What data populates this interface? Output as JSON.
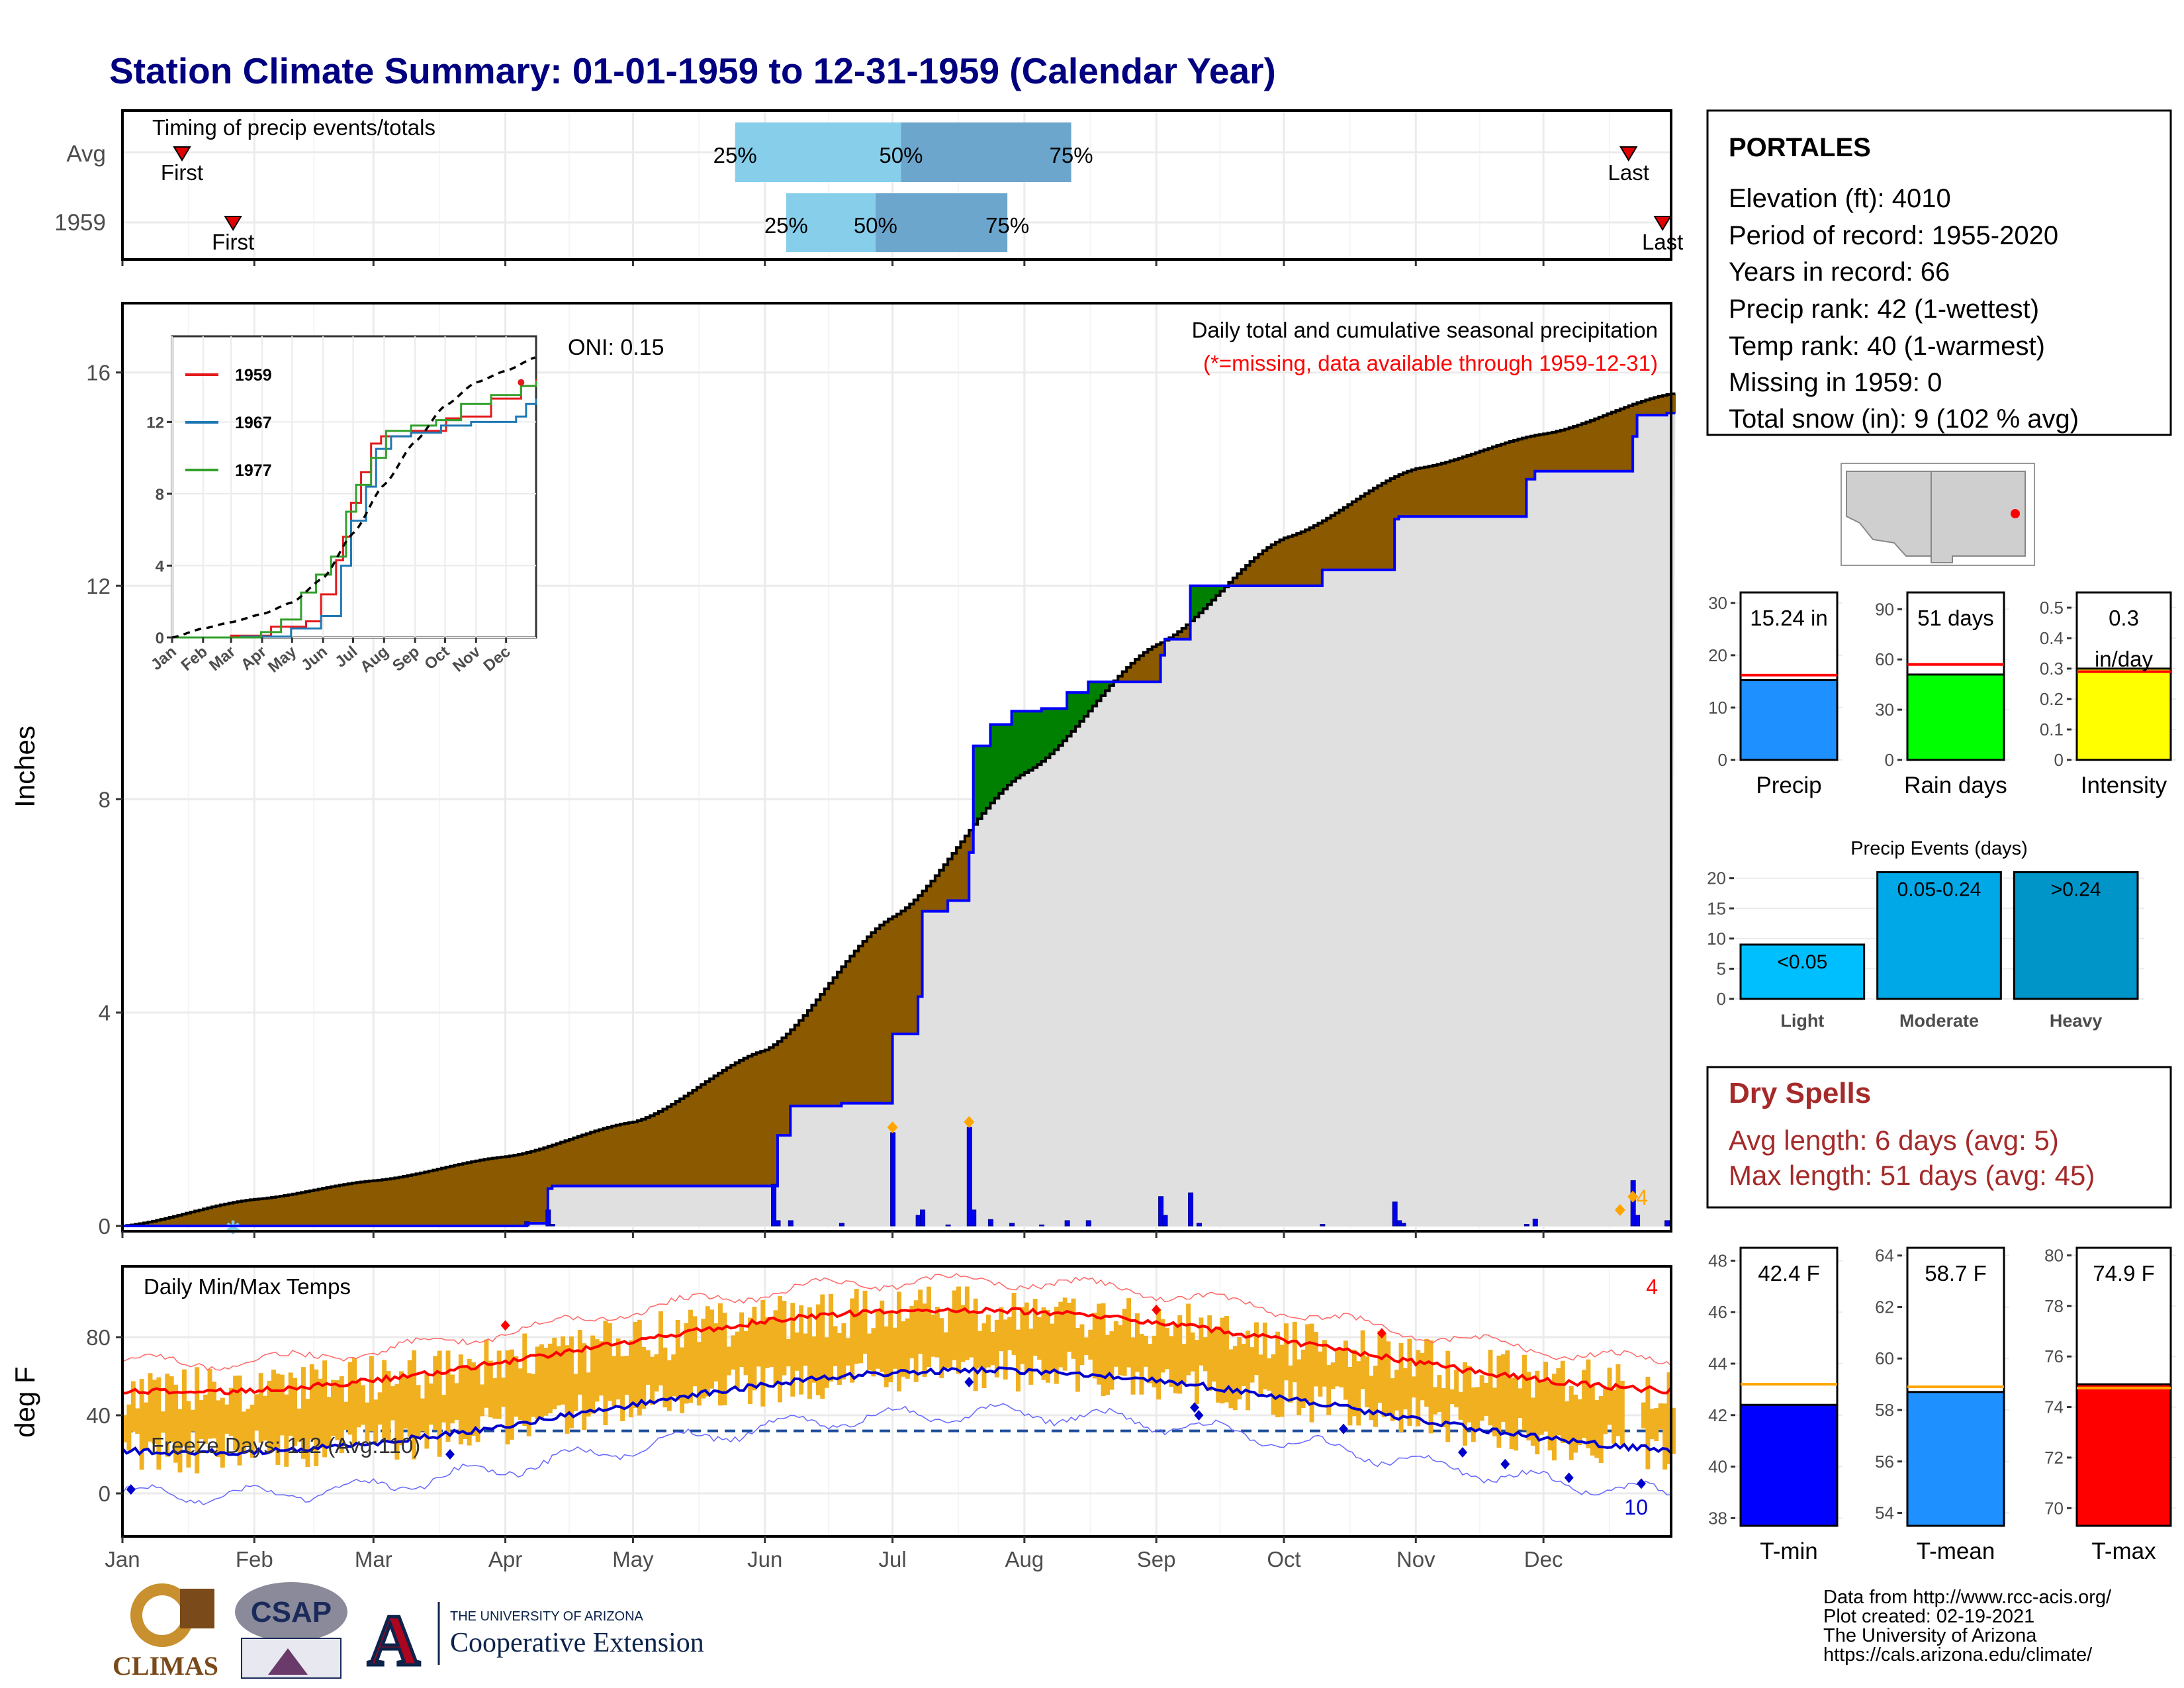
{
  "title": "Station Climate Summary: 01-01-1959 to 12-31-1959 (Calendar Year)",
  "months": [
    "Jan",
    "Feb",
    "Mar",
    "Apr",
    "May",
    "Jun",
    "Jul",
    "Aug",
    "Sep",
    "Oct",
    "Nov",
    "Dec"
  ],
  "timing": {
    "label": "Timing of precip events/totals",
    "rows": [
      {
        "name": "Avg",
        "first_doy": 15,
        "last_doy": 355,
        "p25_doy": 145,
        "p50_doy": 184,
        "p75_doy": 224,
        "first_label": "First",
        "last_label": "Last",
        "p25_label": "25%",
        "p50_label": "50%",
        "p75_label": "75%"
      },
      {
        "name": "1959",
        "first_doy": 27,
        "last_doy": 363,
        "p25_doy": 157,
        "p50_doy": 178,
        "p75_doy": 209,
        "first_label": "First",
        "last_label": "Last",
        "p25_label": "25%",
        "p50_label": "50%",
        "p75_label": "75%"
      }
    ]
  },
  "precip_panel": {
    "ylabel": "Inches",
    "yticks": [
      0,
      4,
      8,
      12,
      16
    ],
    "ymax": 17.2,
    "oni": "ONI: 0.15",
    "caption": "Daily total and cumulative seasonal precipitation",
    "missing_note": "(*=missing, data available through 1959-12-31)",
    "missing_count": "4",
    "colors": {
      "surplus": "#008000",
      "deficit": "#8b5a00",
      "year_line": "#0000ff",
      "avg_line": "#000000",
      "fill": "#e0e0e0"
    }
  },
  "inset": {
    "yticks": [
      0,
      4,
      8,
      12
    ],
    "months": [
      "Jan",
      "Feb",
      "Mar",
      "Apr",
      "May",
      "Jun",
      "Jul",
      "Aug",
      "Sep",
      "Oct",
      "Nov",
      "Dec"
    ],
    "series": [
      {
        "name": "1959",
        "color": "#e31a1c"
      },
      {
        "name": "1967",
        "color": "#1f78b4"
      },
      {
        "name": "1977",
        "color": "#33a02c"
      }
    ]
  },
  "temp_panel": {
    "ylabel": "deg F",
    "yticks": [
      0,
      40,
      80
    ],
    "label": "Daily Min/Max Temps",
    "freeze_label": "Freeze Days: 112 (Avg:110)",
    "missing_max": "4",
    "missing_min": "10",
    "colors": {
      "bars": "#f0b020",
      "max_line": "#ff0000",
      "min_line": "#0000cc",
      "freeze": "#1f4e9a"
    }
  },
  "station": {
    "name": "PORTALES",
    "lines": [
      "Elevation (ft): 4010",
      "Period of record: 1955-2020",
      "Years in record: 66",
      "Precip rank: 42 (1-wettest)",
      "Temp rank: 40 (1-warmest)",
      "Missing in 1959: 0",
      "Total snow (in): 9 (102 % avg)"
    ]
  },
  "chart_data": [
    {
      "type": "bar",
      "title": "Precip",
      "categories": [
        "Precip"
      ],
      "values": [
        15.24
      ],
      "avg": 16.2,
      "value_label": "15.24 in",
      "yticks": [
        0,
        10,
        20,
        30
      ],
      "ylim": [
        0,
        32
      ],
      "color": "#1e90ff"
    },
    {
      "type": "bar",
      "title": "Rain days",
      "categories": [
        "Rain days"
      ],
      "values": [
        51
      ],
      "avg": 57,
      "value_label": "51 days",
      "yticks": [
        0,
        30,
        60,
        90
      ],
      "ylim": [
        0,
        100
      ],
      "color": "#00ff00"
    },
    {
      "type": "bar",
      "title": "Intensity",
      "categories": [
        "Intensity"
      ],
      "values": [
        0.3
      ],
      "avg": 0.29,
      "value_label": "0.3 in/day",
      "yticks": [
        0.0,
        0.1,
        0.2,
        0.3,
        0.4,
        0.5
      ],
      "ylim": [
        0,
        0.55
      ],
      "color": "#ffff00"
    },
    {
      "type": "bar",
      "title": "Precip Events (days)",
      "categories": [
        "Light",
        "Moderate",
        "Heavy"
      ],
      "bar_labels": [
        "<0.05",
        "0.05-0.24",
        ">0.24"
      ],
      "values": [
        9,
        21,
        21
      ],
      "yticks": [
        0,
        5,
        10,
        15,
        20
      ],
      "ylim": [
        0,
        21.5
      ],
      "colors": [
        "#00bfff",
        "#00a8e8",
        "#0095c8"
      ]
    },
    {
      "type": "bar",
      "title": "T-min",
      "categories": [
        "T-min"
      ],
      "values": [
        42.4
      ],
      "avg": 43.2,
      "value_label": "42.4 F",
      "yticks": [
        38,
        40,
        42,
        44,
        46,
        48
      ],
      "ylim": [
        37.7,
        48.5
      ],
      "color": "#0000ff"
    },
    {
      "type": "bar",
      "title": "T-mean",
      "categories": [
        "T-mean"
      ],
      "values": [
        58.7
      ],
      "avg": 58.9,
      "value_label": "58.7 F",
      "yticks": [
        54,
        56,
        58,
        60,
        62,
        64
      ],
      "ylim": [
        53.5,
        64.3
      ],
      "color": "#1e90ff"
    },
    {
      "type": "bar",
      "title": "T-max",
      "categories": [
        "T-max"
      ],
      "values": [
        74.9
      ],
      "avg": 74.75,
      "value_label": "74.9 F",
      "yticks": [
        70,
        72,
        74,
        76,
        78,
        80
      ],
      "ylim": [
        69.3,
        80.3
      ],
      "color": "#ff0000"
    }
  ],
  "dry_spells": {
    "title": "Dry Spells",
    "avg_length": "Avg length: 6 days (avg: 5)",
    "max_length": "Max length: 51 days (avg: 45)"
  },
  "credits": {
    "line1": "Data from http://www.rcc-acis.org/",
    "line2": "Plot created: 02-19-2021",
    "line3": "The University of Arizona",
    "line4": "https://cals.arizona.edu/climate/"
  },
  "logos": {
    "climas": "CLIMAS",
    "csap": "CSAP",
    "ua_small": "THE UNIVERSITY OF ARIZONA",
    "ua_big": "Cooperative Extension",
    "ua_letter": "A"
  }
}
